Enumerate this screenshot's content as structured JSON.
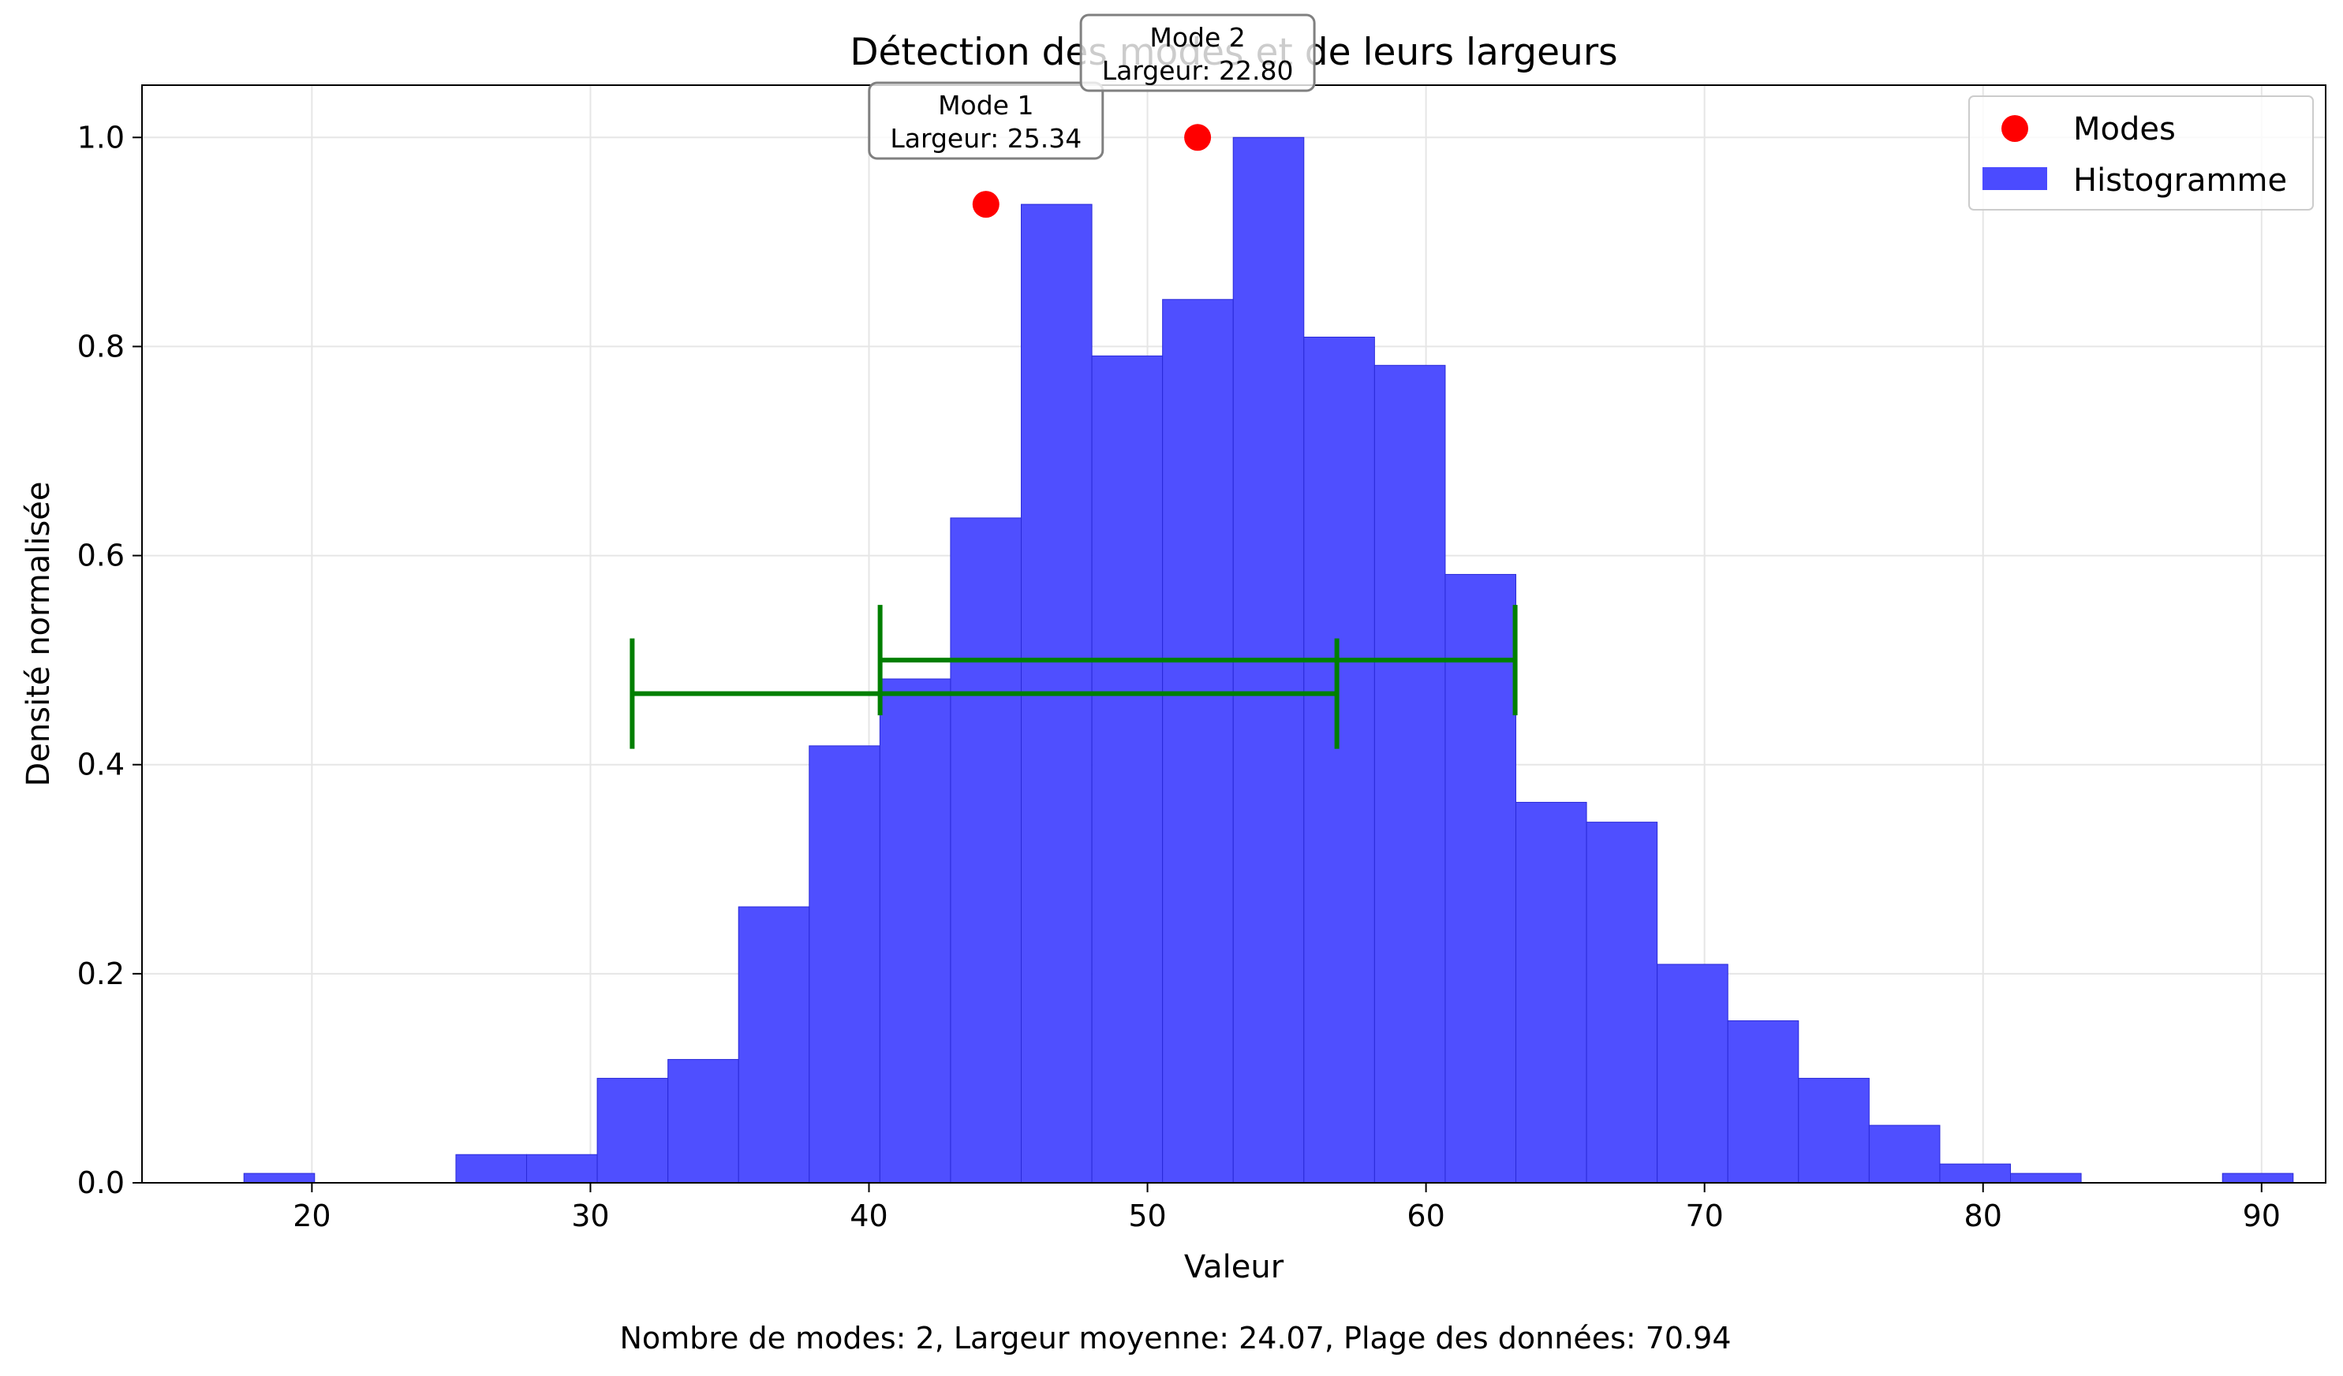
{
  "chart_data": {
    "type": "bar",
    "title": "Détection des modes et de leurs largeurs",
    "xlabel": "Valeur",
    "ylabel": "Densité normalisée",
    "xlim": [
      13.9,
      92.3
    ],
    "ylim": [
      0,
      1.05
    ],
    "xticks": [
      "20",
      "30",
      "40",
      "50",
      "60",
      "70",
      "80",
      "90"
    ],
    "xtick_values": [
      20,
      30,
      40,
      50,
      60,
      70,
      80,
      90
    ],
    "yticks": [
      "0.0",
      "0.2",
      "0.4",
      "0.6",
      "0.8",
      "1.0"
    ],
    "ytick_values": [
      0,
      0.2,
      0.4,
      0.6,
      0.8,
      1.0
    ],
    "grid": true,
    "legend_position": "top-right",
    "histogram": {
      "name": "Histogramme",
      "color": "#4b4bff",
      "bin_start": 17.56,
      "bin_width": 2.537,
      "values": [
        0.009,
        0.0,
        0.0,
        0.027,
        0.027,
        0.1,
        0.118,
        0.264,
        0.418,
        0.482,
        0.636,
        0.936,
        0.791,
        0.845,
        1.0,
        0.809,
        0.782,
        0.582,
        0.364,
        0.345,
        0.209,
        0.155,
        0.1,
        0.055,
        0.018,
        0.009,
        0.0,
        0.0,
        0.009
      ]
    },
    "modes": {
      "name": "Modes",
      "color": "#ff0000",
      "points": [
        {
          "x": 44.2,
          "y": 0.936
        },
        {
          "x": 51.8,
          "y": 1.0
        }
      ]
    },
    "width_bars": {
      "color": "#007f00",
      "bars": [
        {
          "x_start": 31.5,
          "x_end": 56.8,
          "y": 0.468
        },
        {
          "x_start": 40.4,
          "x_end": 63.2,
          "y": 0.5
        }
      ]
    },
    "annotations": [
      {
        "line1": "Mode 1",
        "line2": "Largeur: 25.34",
        "x": 44.2
      },
      {
        "line1": "Mode 2",
        "line2": "Largeur: 22.80",
        "x": 51.8
      }
    ],
    "footer": "Nombre de modes: 2, Largeur moyenne: 24.07, Plage des données: 70.94"
  }
}
